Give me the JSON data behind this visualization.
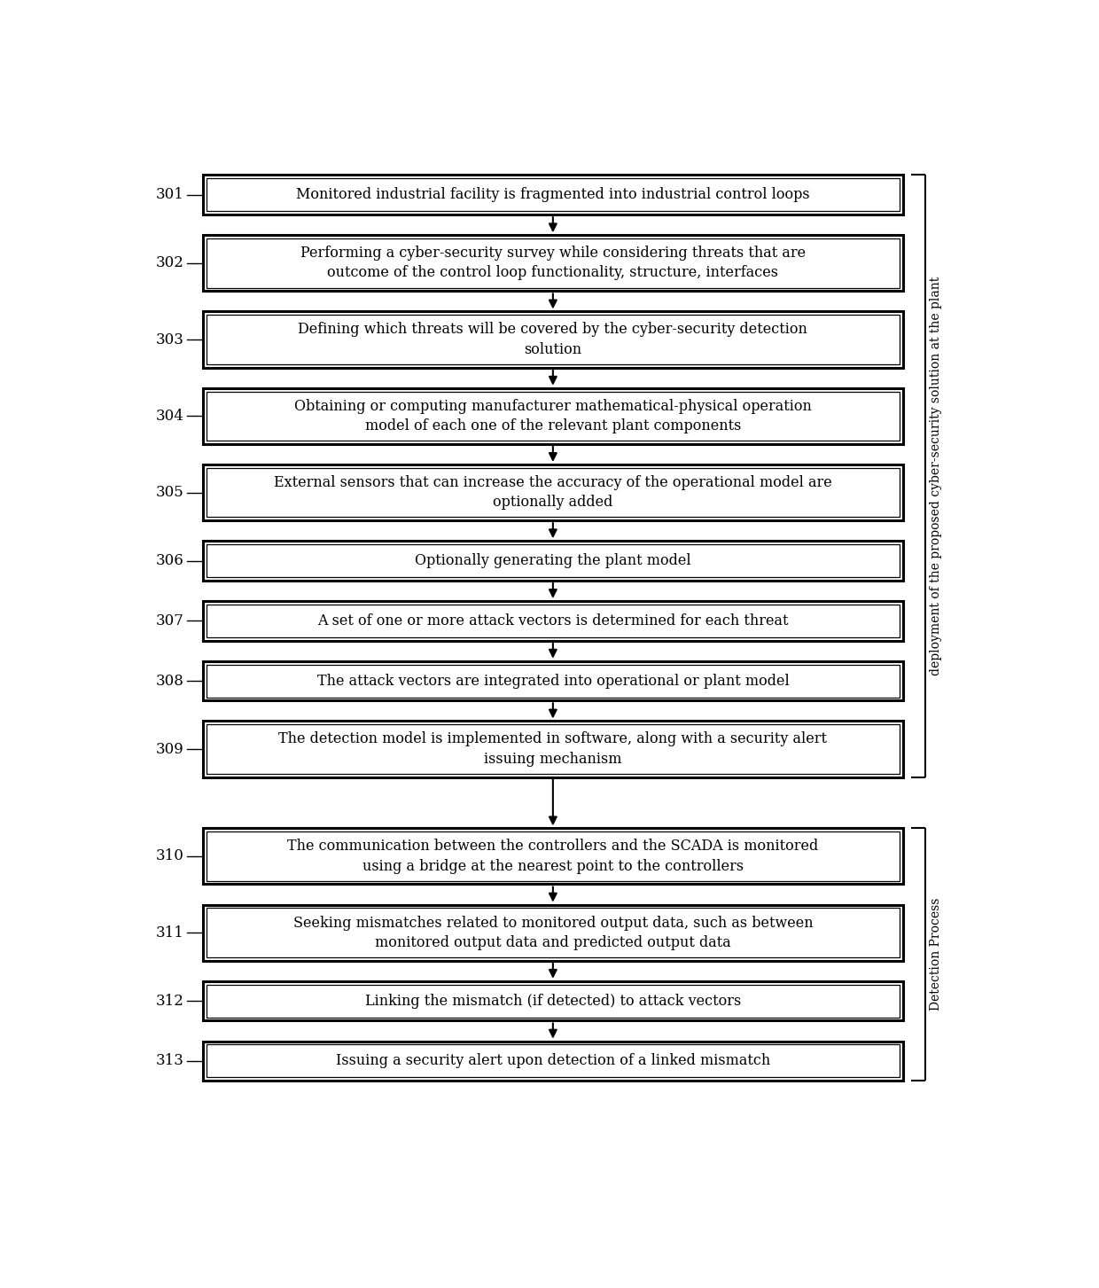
{
  "steps": [
    {
      "id": 301,
      "text": "Monitored industrial facility is fragmented into industrial control loops",
      "lines": 1,
      "tall": false
    },
    {
      "id": 302,
      "text": "Performing a cyber-security survey while considering threats that are\noutcome of the control loop functionality, structure, interfaces",
      "lines": 2,
      "tall": true
    },
    {
      "id": 303,
      "text": "Defining which threats will be covered by the cyber-security detection\nsolution",
      "lines": 2,
      "tall": true
    },
    {
      "id": 304,
      "text": "Obtaining or computing manufacturer mathematical-physical operation\nmodel of each one of the relevant plant components",
      "lines": 2,
      "tall": true
    },
    {
      "id": 305,
      "text": "External sensors that can increase the accuracy of the operational model are\noptionally added",
      "lines": 2,
      "tall": true
    },
    {
      "id": 306,
      "text": "Optionally generating the plant model",
      "lines": 1,
      "tall": false
    },
    {
      "id": 307,
      "text": "A set of one or more attack vectors is determined for each threat",
      "lines": 1,
      "tall": false
    },
    {
      "id": 308,
      "text": "The attack vectors are integrated into operational or plant model",
      "lines": 1,
      "tall": false
    },
    {
      "id": 309,
      "text": "The detection model is implemented in software, along with a security alert\nissuing mechanism",
      "lines": 2,
      "tall": true
    },
    {
      "id": 310,
      "text": "The communication between the controllers and the SCADA is monitored\nusing a bridge at the nearest point to the controllers",
      "lines": 2,
      "tall": true
    },
    {
      "id": 311,
      "text": "Seeking mismatches related to monitored output data, such as between\nmonitored output data and predicted output data",
      "lines": 2,
      "tall": true
    },
    {
      "id": 312,
      "text": "Linking the mismatch (if detected) to attack vectors",
      "lines": 1,
      "tall": false
    },
    {
      "id": 313,
      "text": "Issuing a security alert upon detection of a linked mismatch",
      "lines": 1,
      "tall": false
    }
  ],
  "bracket1_label": "deployment of the proposed cyber-security solution at the plant",
  "bracket2_label": "Detection Process",
  "bg_color": "#ffffff",
  "box_facecolor": "#ffffff",
  "box_edgecolor": "#000000",
  "text_color": "#000000",
  "arrow_color": "#000000",
  "font_size": 11.5,
  "step_label_size": 12,
  "bracket_label_size": 10
}
